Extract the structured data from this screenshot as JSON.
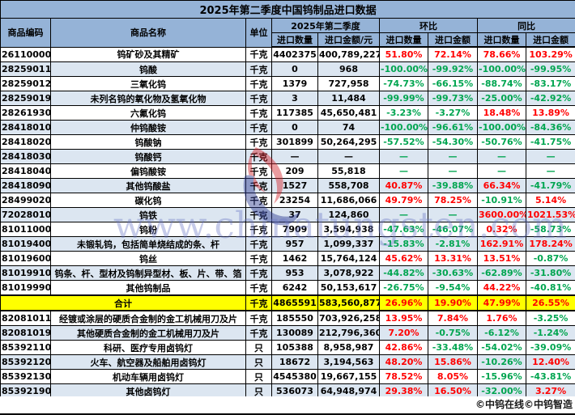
{
  "title": "2025年第二季度中国钨制品进口数据",
  "header": {
    "code": "商品编码",
    "name": "商品名称",
    "unit": "单位",
    "groups": [
      {
        "label": "2025年第二季度",
        "cols": [
          "进口数量",
          "进口金额/元"
        ]
      },
      {
        "label": "环比",
        "cols": [
          "进口数量",
          "进口金额"
        ]
      },
      {
        "label": "同比",
        "cols": [
          "进口数量",
          "进口金额"
        ]
      }
    ]
  },
  "chart_data": {
    "type": "table",
    "title": "2025年第二季度中国钨制品进口数据",
    "columns": [
      "商品编码",
      "商品名称",
      "单位",
      "2025年第二季度进口数量",
      "2025年第二季度进口金额/元",
      "环比进口数量",
      "环比进口金额",
      "同比进口数量",
      "同比进口金额"
    ],
    "rows": [
      {
        "code": "26110000",
        "name": "钨矿砂及其精矿",
        "unit": "千克",
        "qty": "4402375",
        "amount": "400,789,227",
        "hb_qty": "51.80%",
        "hb_amt": "72.14%",
        "tb_qty": "78.66%",
        "tb_amt": "103.29%",
        "total": false
      },
      {
        "code": "28259011",
        "name": "钨酸",
        "unit": "千克",
        "qty": "0",
        "amount": "968",
        "hb_qty": "-100.00%",
        "hb_amt": "-99.92%",
        "tb_qty": "-100.00%",
        "tb_amt": "-99.95%",
        "total": false
      },
      {
        "code": "28259012",
        "name": "三氧化钨",
        "unit": "千克",
        "qty": "1379",
        "amount": "727,958",
        "hb_qty": "-74.73%",
        "hb_amt": "-66.15%",
        "tb_qty": "-88.74%",
        "tb_amt": "-83.17%",
        "total": false
      },
      {
        "code": "28259019",
        "name": "未列名钨的氧化物及氢氧化物",
        "unit": "千克",
        "qty": "3",
        "amount": "11,484",
        "hb_qty": "-99.99%",
        "hb_amt": "-99.73%",
        "tb_qty": "-25.00%",
        "tb_amt": "-42.92%",
        "total": false
      },
      {
        "code": "28261930",
        "name": "六氟化钨",
        "unit": "千克",
        "qty": "117385",
        "amount": "45,650,481",
        "hb_qty": "-3.23%",
        "hb_amt": "-3.27%",
        "tb_qty": "18.48%",
        "tb_amt": "13.89%",
        "total": false
      },
      {
        "code": "28418010",
        "name": "仲钨酸铵",
        "unit": "千克",
        "qty": "0",
        "amount": "74",
        "hb_qty": "-100.00%",
        "hb_amt": "-96.61%",
        "tb_qty": "-100.00%",
        "tb_amt": "-84.36%",
        "total": false
      },
      {
        "code": "28418020",
        "name": "钨酸钠",
        "unit": "千克",
        "qty": "301899",
        "amount": "50,264,295",
        "hb_qty": "-57.52%",
        "hb_amt": "-54.30%",
        "tb_qty": "-50.76%",
        "tb_amt": "-41.75%",
        "total": false
      },
      {
        "code": "28418030",
        "name": "钨酸钙",
        "unit": "千克",
        "qty": "—",
        "amount": "—",
        "hb_qty": "—",
        "hb_amt": "—",
        "tb_qty": "—",
        "tb_amt": "—",
        "total": false
      },
      {
        "code": "28418040",
        "name": "偏钨酸铵",
        "unit": "千克",
        "qty": "209",
        "amount": "55,818",
        "hb_qty": "—",
        "hb_amt": "—",
        "tb_qty": "—",
        "tb_amt": "—",
        "total": false
      },
      {
        "code": "28418090",
        "name": "其他钨酸盐",
        "unit": "千克",
        "qty": "1527",
        "amount": "558,708",
        "hb_qty": "40.87%",
        "hb_amt": "-39.88%",
        "tb_qty": "66.34%",
        "tb_amt": "-41.79%",
        "total": false
      },
      {
        "code": "28499020",
        "name": "碳化钨",
        "unit": "千克",
        "qty": "23254",
        "amount": "11,686,066",
        "hb_qty": "49.79%",
        "hb_amt": "78.25%",
        "tb_qty": "-10.91%",
        "tb_amt": "5.14%",
        "total": false
      },
      {
        "code": "72028010",
        "name": "钨铁",
        "unit": "千克",
        "qty": "37",
        "amount": "124,860",
        "hb_qty": "—",
        "hb_amt": "—",
        "tb_qty": "3600.00%",
        "tb_amt": "1021.53%",
        "total": false
      },
      {
        "code": "81011000",
        "name": "钨粉",
        "unit": "千克",
        "qty": "7909",
        "amount": "3,594,938",
        "hb_qty": "-47.63%",
        "hb_amt": "-46.07%",
        "tb_qty": "0.32%",
        "tb_amt": "-58.73%",
        "total": false
      },
      {
        "code": "81019400",
        "name": "未锻轧钨，包括简单烧结成的条、杆",
        "unit": "千克",
        "qty": "957",
        "amount": "1,099,337",
        "hb_qty": "-15.83%",
        "hb_amt": "-2.81%",
        "tb_qty": "162.91%",
        "tb_amt": "178.24%",
        "total": false
      },
      {
        "code": "81019600",
        "name": "钨丝",
        "unit": "千克",
        "qty": "1462",
        "amount": "15,764,124",
        "hb_qty": "45.62%",
        "hb_amt": "13.31%",
        "tb_qty": "13.51%",
        "tb_amt": "-0.87%",
        "total": false
      },
      {
        "code": "81019910",
        "name": "钨条、杆、型材及钨制异型材、板、片、带、箔",
        "unit": "千克",
        "qty": "953",
        "amount": "3,078,922",
        "hb_qty": "-44.82%",
        "hb_amt": "-30.63%",
        "tb_qty": "-62.89%",
        "tb_amt": "-31.80%",
        "total": false
      },
      {
        "code": "81019990",
        "name": "其他钨制品",
        "unit": "千克",
        "qty": "6242",
        "amount": "50,153,617",
        "hb_qty": "-26.75%",
        "hb_amt": "-9.54%",
        "tb_qty": "44.22%",
        "tb_amt": "-40.81%",
        "total": false
      },
      {
        "code": "",
        "name": "合计",
        "unit": "千克",
        "qty": "4865591",
        "amount": "583,560,877",
        "hb_qty": "26.96%",
        "hb_amt": "19.90%",
        "tb_qty": "47.99%",
        "tb_amt": "26.55%",
        "total": true
      },
      {
        "code": "82081011",
        "name": "经镀或涂层的硬质合金制的金工机械用刀及片",
        "unit": "千克",
        "qty": "185550",
        "amount": "703,926,258",
        "hb_qty": "13.95%",
        "hb_amt": "7.84%",
        "tb_qty": "1.76%",
        "tb_amt": "-3.25%",
        "total": false
      },
      {
        "code": "82081019",
        "name": "其他硬质合金制的金工机械用刀及片",
        "unit": "千克",
        "qty": "130089",
        "amount": "212,796,360",
        "hb_qty": "7.20%",
        "hb_amt": "-0.75%",
        "tb_qty": "-6.12%",
        "tb_amt": "-1.24%",
        "total": false
      },
      {
        "code": "85392110",
        "name": "科研、医疗专用卤钨灯",
        "unit": "只",
        "qty": "105388",
        "amount": "8,958,987",
        "hb_qty": "42.86%",
        "hb_amt": "-33.48%",
        "tb_qty": "-54.02%",
        "tb_amt": "-39.09%",
        "total": false
      },
      {
        "code": "85392120",
        "name": "火车、航空器及船舶用卤钨灯",
        "unit": "只",
        "qty": "18672",
        "amount": "3,194,563",
        "hb_qty": "48.20%",
        "hb_amt": "15.86%",
        "tb_qty": "-10.26%",
        "tb_amt": "12.40%",
        "total": false
      },
      {
        "code": "85392130",
        "name": "机动车辆用卤钨灯",
        "unit": "只",
        "qty": "4545380",
        "amount": "19,667,155",
        "hb_qty": "78.52%",
        "hb_amt": "8.05%",
        "tb_qty": "-15.96%",
        "tb_amt": "-43.81%",
        "total": false
      },
      {
        "code": "85392190",
        "name": "其他卤钨灯",
        "unit": "只",
        "qty": "536073",
        "amount": "64,948,974",
        "hb_qty": "29.38%",
        "hb_amt": "16.50%",
        "tb_qty": "-32.00%",
        "tb_amt": "3.27%",
        "total": false
      }
    ]
  },
  "watermark": {
    "text": "www.chinatungsten.com"
  },
  "footer": "©中钨在线©中钨智造",
  "colors": {
    "title_bg": "#95B3D7",
    "band_bg": "#DCE6F1",
    "total_bg": "#FFFF00",
    "positive": "#FF0000",
    "negative": "#00A550",
    "watermark": "#6E7EC4"
  }
}
